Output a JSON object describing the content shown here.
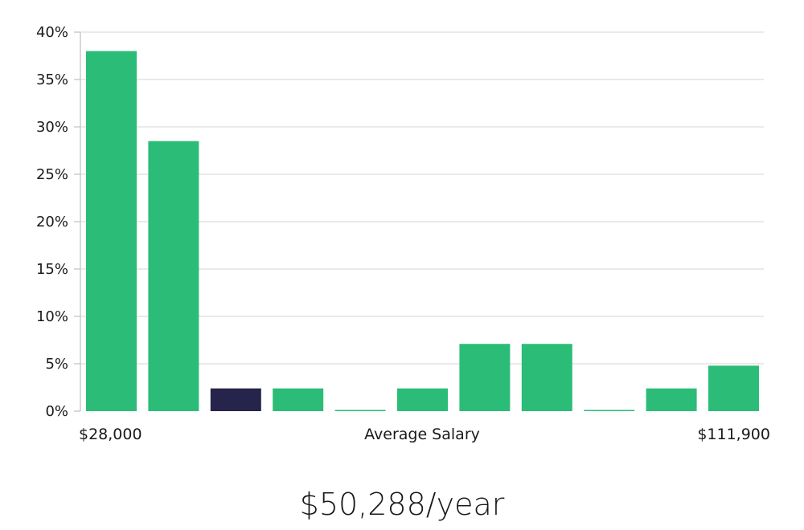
{
  "chart_data": {
    "type": "bar",
    "ylim": [
      0,
      40
    ],
    "y_ticks": [
      0,
      5,
      10,
      15,
      20,
      25,
      30,
      35,
      40
    ],
    "y_tick_format": "%",
    "grid": true,
    "values": [
      38,
      28.5,
      2.4,
      2.4,
      0,
      2.4,
      7.1,
      7.1,
      0,
      2.4,
      4.8
    ],
    "highlight_index": 2,
    "colors": {
      "bar": "#2bbd77",
      "highlight": "#26244a",
      "grid": "#e3e3e3",
      "axis": "#cccccc"
    },
    "x_axis": {
      "min_label": "$28,000",
      "center_label": "Average Salary",
      "max_label": "$111,900"
    }
  },
  "headline": "$50,288/year"
}
